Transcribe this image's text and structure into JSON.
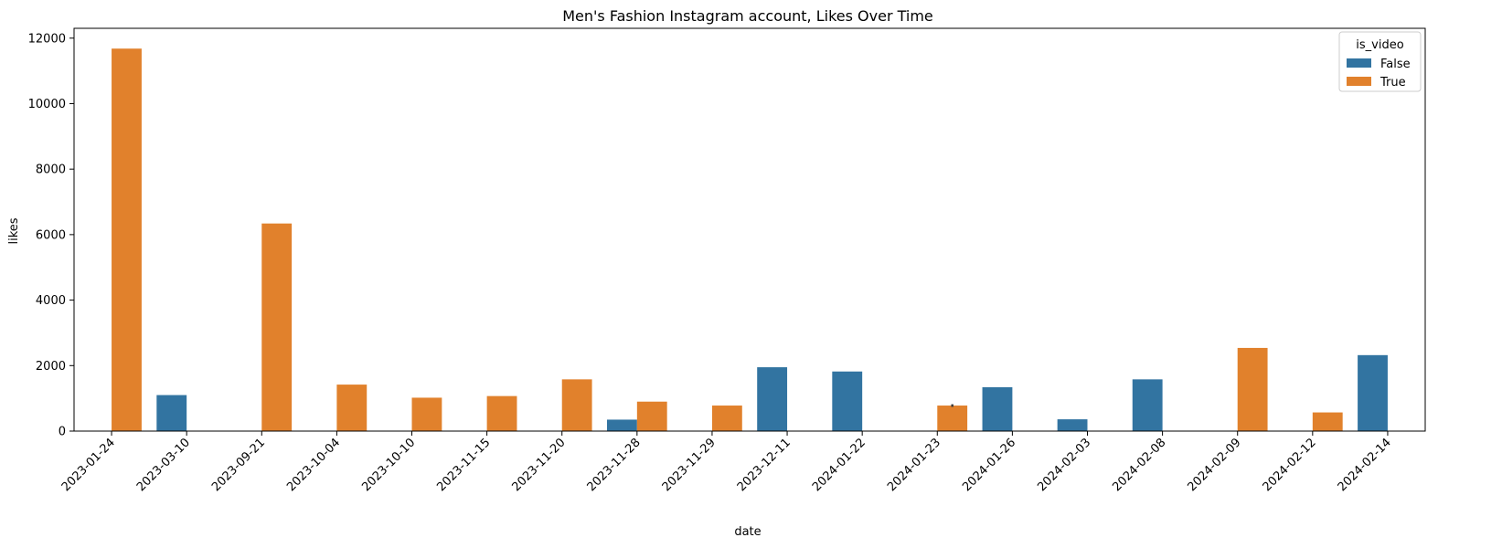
{
  "chart_data": {
    "type": "bar",
    "title": "Men's Fashion Instagram account, Likes Over Time",
    "xlabel": "date",
    "ylabel": "likes",
    "categories": [
      "2023-01-24",
      "2023-03-10",
      "2023-09-21",
      "2023-10-04",
      "2023-10-10",
      "2023-11-15",
      "2023-11-20",
      "2023-11-28",
      "2023-11-29",
      "2023-12-11",
      "2024-01-22",
      "2024-01-23",
      "2024-01-26",
      "2024-02-03",
      "2024-02-08",
      "2024-02-09",
      "2024-02-12",
      "2024-02-14"
    ],
    "ylim": [
      0,
      12300
    ],
    "yticks": [
      0,
      2000,
      4000,
      6000,
      8000,
      10000,
      12000
    ],
    "grid": false,
    "legend": {
      "title": "is_video",
      "placement": "top-right"
    },
    "series": [
      {
        "name": "False",
        "color": "#3274a1",
        "values": [
          null,
          1100,
          null,
          null,
          null,
          null,
          null,
          350,
          null,
          1950,
          1820,
          null,
          1340,
          360,
          1580,
          null,
          null,
          2320
        ]
      },
      {
        "name": "True",
        "color": "#e1812c",
        "values": [
          11680,
          null,
          6340,
          1420,
          1020,
          1070,
          1580,
          900,
          780,
          null,
          null,
          780,
          null,
          null,
          null,
          2540,
          570,
          null
        ]
      }
    ],
    "error_bars": [
      {
        "category": "2024-01-23",
        "series": "True",
        "low": 740,
        "high": 820
      }
    ]
  }
}
